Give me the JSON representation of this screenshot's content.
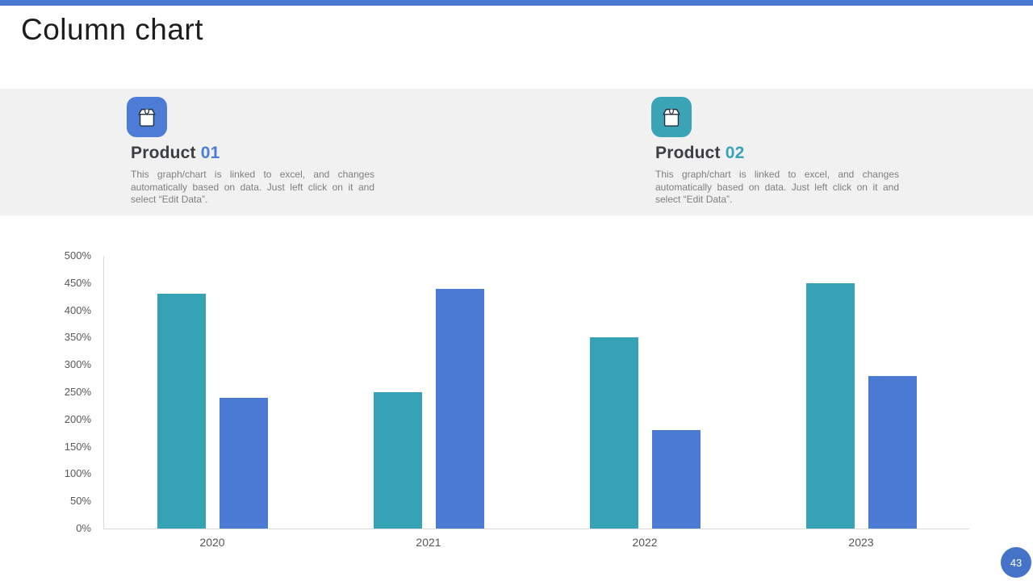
{
  "page": {
    "title": "Column chart",
    "page_number": "43"
  },
  "theme": {
    "top_bar_blue": "#4A79D2",
    "accent_blue": "#4C7CD6",
    "accent_teal": "#3AA3B5",
    "page_number_blue": "#4573C8",
    "band_gray": "#F1F1F1",
    "heading_dark": "#3B3E42",
    "body_gray": "#7F7F7F",
    "axis_label_gray": "#595959",
    "axis_line_gray": "#D9D9D9"
  },
  "products": [
    {
      "label": "Product",
      "number": "01",
      "number_color": "#4C7CD6",
      "icon": "package-box-icon",
      "icon_bg": "#4C7CD6",
      "description": "This graph/chart is linked to excel, and changes automatically based on data. Just left click on it and select “Edit Data”."
    },
    {
      "label": "Product",
      "number": "02",
      "number_color": "#3AA3B5",
      "icon": "package-box-icon",
      "icon_bg": "#3AA3B5",
      "description": "This graph/chart is linked to excel, and changes automatically based on data. Just left click on it and select “Edit Data”."
    }
  ],
  "chart_data": {
    "type": "bar",
    "title": "",
    "xlabel": "",
    "ylabel": "",
    "categories": [
      "2020",
      "2021",
      "2022",
      "2023"
    ],
    "series": [
      {
        "name": "teal",
        "color": "#35A2B5",
        "values": [
          430,
          250,
          350,
          450
        ]
      },
      {
        "name": "blue",
        "color": "#4A7AD2",
        "values": [
          240,
          440,
          180,
          280
        ]
      }
    ],
    "ylim": [
      0,
      500
    ],
    "ytick_step": 50,
    "y_ticks": [
      "0%",
      "50%",
      "100%",
      "150%",
      "200%",
      "250%",
      "300%",
      "350%",
      "400%",
      "450%",
      "500%"
    ],
    "grid": false,
    "legend": false
  }
}
